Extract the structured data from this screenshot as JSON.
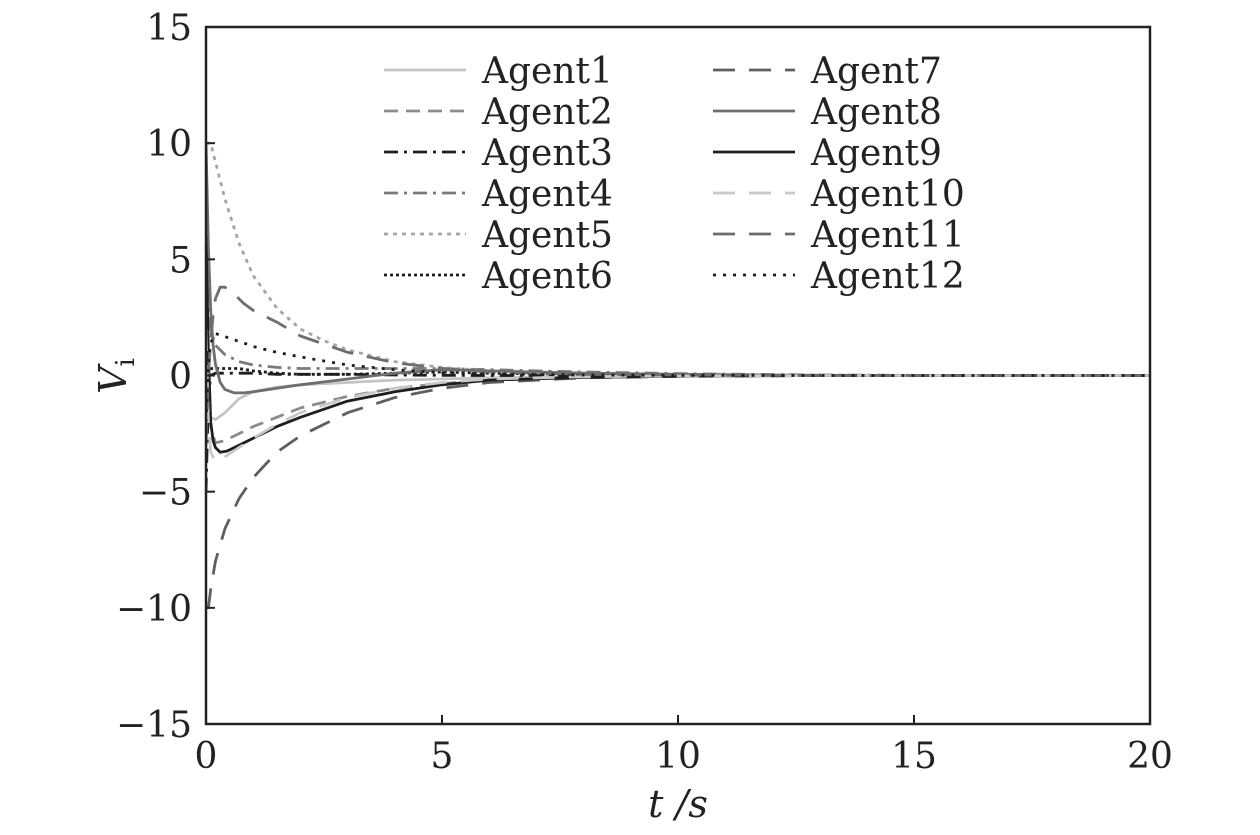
{
  "chart_data": {
    "type": "line",
    "xlabel": "t /s",
    "ylabel": "V",
    "ylabel_sub": "i",
    "xlim": [
      0,
      20
    ],
    "ylim": [
      -15,
      15
    ],
    "xticks": [
      0,
      5,
      10,
      15,
      20
    ],
    "yticks": [
      -15,
      -10,
      -5,
      0,
      5,
      10,
      15
    ],
    "xtick_labels": [
      "0",
      "5",
      "10",
      "15",
      "20"
    ],
    "ytick_labels": [
      "−15",
      "−10",
      "−5",
      "0",
      "5",
      "10",
      "15"
    ],
    "grid": false,
    "legend_position": "top",
    "series": [
      {
        "name": "Agent1",
        "color": "#c4c4c4",
        "dash": "solid",
        "x": [
          0,
          0.05,
          0.1,
          0.2,
          0.4,
          0.7,
          1.0,
          1.5,
          2.0,
          3.0,
          4.0,
          5.0,
          6.0,
          8.0,
          10.0,
          13.0,
          16.0,
          20.0
        ],
        "y": [
          4.0,
          -1.0,
          -1.8,
          -1.9,
          -1.6,
          -1.0,
          -0.7,
          -0.5,
          -0.4,
          -0.3,
          -0.2,
          -0.15,
          -0.1,
          -0.05,
          -0.02,
          0,
          0,
          0
        ]
      },
      {
        "name": "Agent2",
        "color": "#8c8c8c",
        "dash": "dashdash",
        "x": [
          0,
          0.05,
          0.1,
          0.2,
          0.4,
          0.7,
          1.0,
          1.5,
          2.0,
          3.0,
          4.0,
          5.0,
          6.0,
          8.0,
          10.0,
          13.0,
          16.0,
          20.0
        ],
        "y": [
          3.0,
          -1.0,
          -2.2,
          -2.9,
          -2.8,
          -2.5,
          -2.2,
          -1.8,
          -1.4,
          -0.9,
          -0.55,
          -0.35,
          -0.2,
          -0.08,
          -0.03,
          0,
          0,
          0
        ]
      },
      {
        "name": "Agent3",
        "color": "#1e1e1e",
        "dash": "dashdot",
        "x": [
          0,
          0.05,
          0.1,
          0.2,
          0.4,
          0.7,
          1.0,
          1.5,
          2.0,
          3.0,
          4.0,
          5.0,
          6.0,
          8.0,
          10.0,
          13.0,
          16.0,
          20.0
        ],
        "y": [
          -5.0,
          -1.0,
          0.0,
          0.1,
          0.1,
          0.1,
          0.1,
          0.05,
          0.05,
          0.05,
          0.02,
          0.01,
          0,
          0,
          0,
          0,
          0,
          0
        ]
      },
      {
        "name": "Agent4",
        "color": "#7a7a7a",
        "dash": "dashdot",
        "x": [
          0,
          0.05,
          0.1,
          0.2,
          0.4,
          0.7,
          1.0,
          1.5,
          2.0,
          3.0,
          4.0,
          5.0,
          6.0,
          8.0,
          10.0,
          13.0,
          16.0,
          20.0
        ],
        "y": [
          5.0,
          3.0,
          2.0,
          1.3,
          0.9,
          0.6,
          0.45,
          0.35,
          0.3,
          0.3,
          0.3,
          0.3,
          0.25,
          0.15,
          0.08,
          0.02,
          0,
          0
        ]
      },
      {
        "name": "Agent5",
        "color": "#a5a5a5",
        "dash": "dotted",
        "x": [
          0,
          0.1,
          0.2,
          0.4,
          0.7,
          1.0,
          1.5,
          2.0,
          2.5,
          3.0,
          4.0,
          5.0,
          6.0,
          8.0,
          10.0,
          13.0,
          16.0,
          20.0
        ],
        "y": [
          10.0,
          10.0,
          9.2,
          7.6,
          5.7,
          4.3,
          2.9,
          2.0,
          1.5,
          1.1,
          0.6,
          0.35,
          0.2,
          0.08,
          0.03,
          0,
          0,
          0
        ]
      },
      {
        "name": "Agent6",
        "color": "#1e1e1e",
        "dash": "densedot",
        "x": [
          0,
          0.05,
          0.1,
          0.2,
          0.4,
          0.7,
          1.0,
          1.5,
          2.0,
          3.0,
          4.0,
          5.0,
          6.0,
          8.0,
          10.0,
          13.0,
          16.0,
          20.0
        ],
        "y": [
          0.5,
          0.4,
          0.3,
          0.3,
          0.3,
          0.3,
          0.2,
          0.1,
          0.05,
          0.05,
          0.1,
          0.15,
          0.1,
          0.05,
          0.02,
          0,
          0,
          0
        ]
      },
      {
        "name": "Agent7",
        "color": "#5f5f5f",
        "dash": "longdash",
        "x": [
          0,
          0.05,
          0.1,
          0.2,
          0.4,
          0.7,
          1.0,
          1.5,
          2.0,
          3.0,
          4.0,
          5.0,
          6.0,
          8.0,
          10.0,
          13.0,
          16.0,
          20.0
        ],
        "y": [
          -10.0,
          -10.0,
          -9.2,
          -8.0,
          -6.6,
          -5.3,
          -4.4,
          -3.3,
          -2.6,
          -1.6,
          -0.95,
          -0.55,
          -0.3,
          -0.1,
          -0.04,
          0,
          0,
          0
        ]
      },
      {
        "name": "Agent8",
        "color": "#6e6e6e",
        "dash": "solid",
        "x": [
          0,
          0.05,
          0.1,
          0.15,
          0.2,
          0.3,
          0.4,
          0.6,
          0.8,
          1.0,
          1.5,
          2.0,
          3.0,
          4.0,
          5.0,
          6.0,
          8.0,
          10.0,
          13.0,
          16.0,
          20.0
        ],
        "y": [
          10.0,
          5.5,
          2.8,
          1.3,
          0.5,
          -0.3,
          -0.6,
          -0.75,
          -0.75,
          -0.7,
          -0.55,
          -0.4,
          -0.15,
          0.1,
          0.25,
          0.2,
          0.1,
          0.05,
          0.01,
          0,
          0
        ]
      },
      {
        "name": "Agent9",
        "color": "#1e1e1e",
        "dash": "solid",
        "x": [
          0,
          0.05,
          0.1,
          0.15,
          0.2,
          0.3,
          0.45,
          0.7,
          1.0,
          1.5,
          2.0,
          3.0,
          4.0,
          5.0,
          6.0,
          8.0,
          10.0,
          13.0,
          16.0,
          20.0
        ],
        "y": [
          6.0,
          1.0,
          -2.0,
          -2.8,
          -3.1,
          -3.3,
          -3.25,
          -3.0,
          -2.7,
          -2.2,
          -1.8,
          -1.1,
          -0.7,
          -0.4,
          -0.2,
          -0.08,
          -0.03,
          0,
          0,
          0
        ]
      },
      {
        "name": "Agent10",
        "color": "#c8c8c8",
        "dash": "longdash",
        "x": [
          0,
          0.05,
          0.1,
          0.2,
          0.4,
          0.7,
          1.0,
          1.5,
          2.0,
          3.0,
          4.0,
          5.0,
          6.0,
          8.0,
          10.0,
          13.0,
          16.0,
          20.0
        ],
        "y": [
          2.0,
          -2.0,
          -3.3,
          -3.7,
          -3.5,
          -3.1,
          -2.7,
          -2.1,
          -1.6,
          -0.95,
          -0.55,
          -0.3,
          -0.15,
          -0.05,
          -0.02,
          0,
          0,
          0
        ]
      },
      {
        "name": "Agent11",
        "color": "#6e6e6e",
        "dash": "longdash",
        "x": [
          0,
          0.05,
          0.1,
          0.15,
          0.2,
          0.3,
          0.4,
          0.6,
          0.8,
          1.0,
          1.5,
          2.0,
          3.0,
          4.0,
          5.0,
          6.0,
          8.0,
          10.0,
          13.0,
          16.0,
          20.0
        ],
        "y": [
          -3.0,
          0.0,
          1.5,
          2.6,
          3.3,
          3.8,
          3.8,
          3.5,
          3.1,
          2.8,
          2.3,
          1.7,
          1.0,
          0.55,
          0.3,
          0.15,
          0.05,
          0.02,
          0,
          0,
          0
        ]
      },
      {
        "name": "Agent12",
        "color": "#1e1e1e",
        "dash": "sparsedot",
        "x": [
          0,
          0.05,
          0.1,
          0.2,
          0.3,
          0.5,
          0.8,
          1.0,
          1.5,
          2.0,
          3.0,
          4.0,
          5.0,
          6.0,
          8.0,
          10.0,
          13.0,
          16.0,
          20.0
        ],
        "y": [
          -2.0,
          0.5,
          1.4,
          1.8,
          1.75,
          1.6,
          1.4,
          1.25,
          1.0,
          0.8,
          0.45,
          0.25,
          0.12,
          0.06,
          0.02,
          0.01,
          0,
          0,
          0
        ]
      }
    ]
  }
}
